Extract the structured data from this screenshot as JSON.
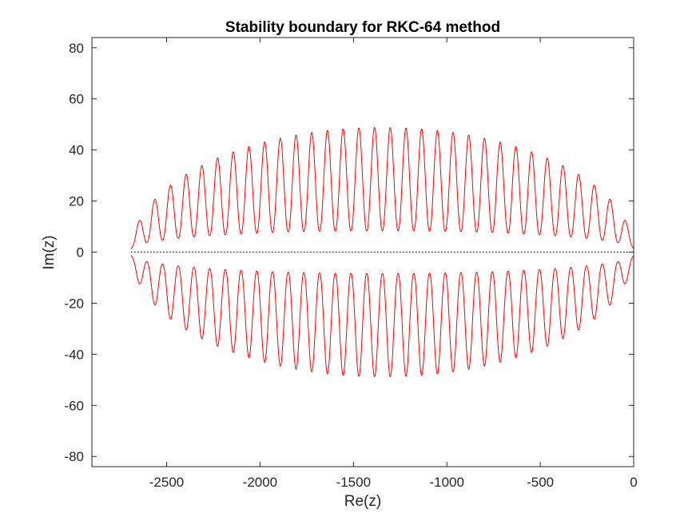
{
  "chart_data": {
    "type": "line",
    "title": "Stability boundary for RKC-64 method",
    "xlabel": "Re(z)",
    "ylabel": "Im(z)",
    "xlim": [
      -2900,
      0
    ],
    "ylim": [
      -84,
      84
    ],
    "xticks": [
      -2500,
      -2000,
      -1500,
      -1000,
      -500,
      0
    ],
    "yticks": [
      -80,
      -60,
      -40,
      -20,
      0,
      20,
      40,
      60,
      80
    ],
    "xtick_labels": [
      "-2500",
      "-2000",
      "-1500",
      "-1000",
      "-500",
      "0"
    ],
    "ytick_labels": [
      "-80",
      "-60",
      "-40",
      "-20",
      "0",
      "20",
      "40",
      "60",
      "80"
    ],
    "grid": false,
    "box": true,
    "series": [
      {
        "style": "solid",
        "color": "#ff0000",
        "description_values": {
          "left_end_re": -2690,
          "right_end_re": 0,
          "lobe_count": 64,
          "peak_im_max": 48.8,
          "peak_im_max_at_re": -1345,
          "valley_im_max": 8,
          "symmetric_about_real_axis": true
        },
        "peaks_upper": [
          {
            "x": -2660,
            "y": 7
          },
          {
            "x": -2620,
            "y": 12
          },
          {
            "x": -2580,
            "y": 16
          },
          {
            "x": -2540,
            "y": 21
          },
          {
            "x": -2455,
            "y": 29
          },
          {
            "x": -2390,
            "y": 33
          },
          {
            "x": -2320,
            "y": 36
          },
          {
            "x": -2205,
            "y": 39
          },
          {
            "x": -2080,
            "y": 42
          },
          {
            "x": -1965,
            "y": 44
          },
          {
            "x": -1850,
            "y": 45.5
          },
          {
            "x": -1735,
            "y": 46.5
          },
          {
            "x": -1605,
            "y": 48
          },
          {
            "x": -1475,
            "y": 48.5
          },
          {
            "x": -1345,
            "y": 48.8
          },
          {
            "x": -1215,
            "y": 48.5
          },
          {
            "x": -1085,
            "y": 47.5
          },
          {
            "x": -965,
            "y": 46.5
          },
          {
            "x": -845,
            "y": 45.5
          },
          {
            "x": -730,
            "y": 44
          },
          {
            "x": -615,
            "y": 42
          },
          {
            "x": -505,
            "y": 39
          },
          {
            "x": -395,
            "y": 36
          },
          {
            "x": -280,
            "y": 29
          },
          {
            "x": -175,
            "y": 21
          },
          {
            "x": -95,
            "y": 16
          },
          {
            "x": -40,
            "y": 12
          },
          {
            "x": -8,
            "y": 7
          }
        ]
      },
      {
        "style": "dotted",
        "color": "#000000",
        "x": [
          -2690,
          0
        ],
        "y": [
          0,
          0
        ]
      }
    ]
  }
}
